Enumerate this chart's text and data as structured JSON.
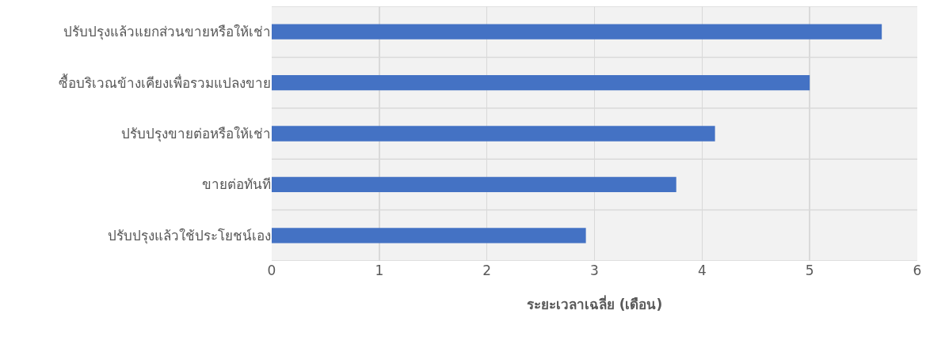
{
  "chart_data": {
    "type": "bar",
    "orientation": "horizontal",
    "xlabel": "ระยะเวลาเฉลี่ย (เดือน)",
    "categories": [
      "ปรับปรุงแล้วแยกส่วนขายหรือให้เช่า",
      "ซื้อบริเวณข้างเคียงเพื่อรวมแปลงขาย",
      "ปรับปรุงขายต่อหรือให้เช่า",
      "ขายต่อทันที",
      "ปรับปรุงแล้วใช้ประโยชน์เอง"
    ],
    "values": [
      5.67,
      5.0,
      4.12,
      3.76,
      2.92
    ],
    "color": "#4472c4",
    "xlim": [
      0,
      6
    ],
    "xticks": [
      0,
      1,
      2,
      3,
      4,
      5,
      6
    ],
    "grid": true,
    "legend": false
  }
}
